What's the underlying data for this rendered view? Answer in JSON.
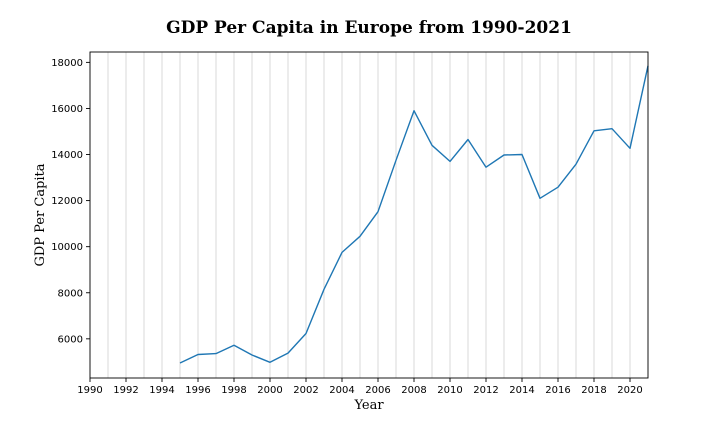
{
  "chart_data": {
    "type": "line",
    "title": "GDP Per Capita in Europe from 1990-2021",
    "xlabel": "Year",
    "ylabel": "GDP Per Capita",
    "xlim": [
      1990,
      2021
    ],
    "ylim": [
      4300,
      18450
    ],
    "x_ticks": [
      1990,
      1992,
      1994,
      1996,
      1998,
      2000,
      2002,
      2004,
      2006,
      2008,
      2010,
      2012,
      2014,
      2016,
      2018,
      2020
    ],
    "y_ticks": [
      6000,
      8000,
      10000,
      12000,
      14000,
      16000,
      18000
    ],
    "grid": "vertical lines at every year",
    "line_color": "#1f77b4",
    "series": [
      {
        "x": [
          1995,
          1996,
          1997,
          1998,
          1999,
          2000,
          2001,
          2002,
          2003,
          2004,
          2005,
          2006,
          2007,
          2008,
          2009,
          2010,
          2011,
          2012,
          2013,
          2014,
          2015,
          2016,
          2017,
          2018,
          2019,
          2020,
          2021
        ],
        "values": [
          4950,
          5320,
          5360,
          5720,
          5300,
          4980,
          5380,
          6230,
          8150,
          9750,
          10450,
          11520,
          13750,
          15900,
          14400,
          13700,
          14650,
          13450,
          13980,
          14000,
          12100,
          12580,
          13580,
          15030,
          15120,
          14270,
          17850
        ]
      }
    ]
  }
}
